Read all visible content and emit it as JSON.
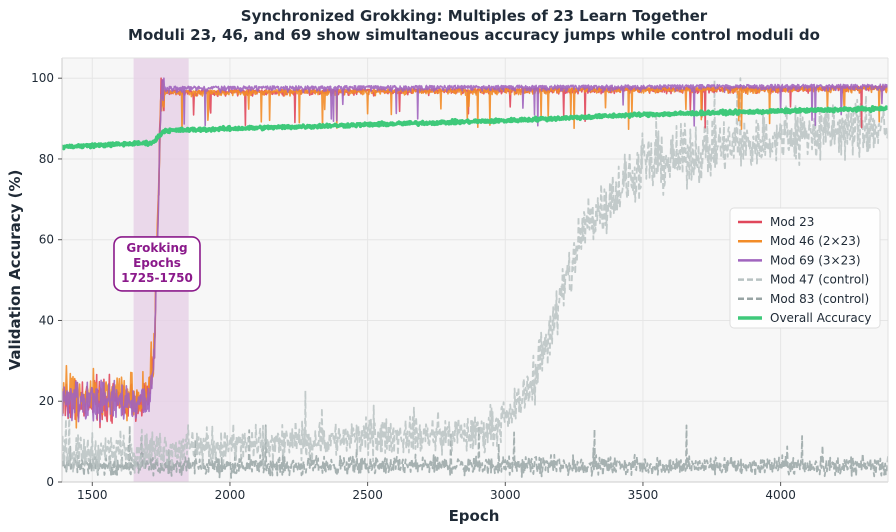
{
  "chart_data": {
    "type": "line",
    "title": "Synchronized Grokking: Multiples of 23 Learn Together",
    "subtitle": "Moduli 23, 46, and 69 show simultaneous accuracy jumps while control moduli do",
    "xlabel": "Epoch",
    "ylabel": "Validation Accuracy (%)",
    "xlim": [
      1390,
      4390
    ],
    "ylim": [
      0,
      105
    ],
    "xticks": [
      1500,
      2000,
      2500,
      3000,
      3500,
      4000
    ],
    "yticks": [
      0,
      20,
      40,
      60,
      80,
      100
    ],
    "grid": true,
    "legend_position": "center-right",
    "shaded_region": {
      "x_start": 1650,
      "x_end": 1850,
      "color": "#e6cde6"
    },
    "annotation": {
      "lines": [
        "Grokking",
        "Epochs",
        "1725-1750"
      ],
      "x": 1735,
      "y": 54,
      "color": "#8b1a8b"
    },
    "series": [
      {
        "name": "Mod 23",
        "color": "#e0475b",
        "style": "solid",
        "points": [
          [
            1390,
            20
          ],
          [
            1700,
            20
          ],
          [
            1725,
            30
          ],
          [
            1750,
            97
          ],
          [
            4390,
            98
          ]
        ],
        "noise": 4.5
      },
      {
        "name": "Mod 46 (2×23)",
        "color": "#f28c28",
        "style": "solid",
        "points": [
          [
            1390,
            21
          ],
          [
            1700,
            21
          ],
          [
            1725,
            32
          ],
          [
            1750,
            97
          ],
          [
            4390,
            98
          ]
        ],
        "noise": 5
      },
      {
        "name": "Mod 69 (3×23)",
        "color": "#a064be",
        "style": "solid",
        "points": [
          [
            1390,
            20
          ],
          [
            1700,
            20
          ],
          [
            1725,
            30
          ],
          [
            1750,
            98
          ],
          [
            4390,
            98.5
          ]
        ],
        "noise": 4.5
      },
      {
        "name": "Mod 47 (control)",
        "color": "#b8c2c2",
        "style": "dashed",
        "points": [
          [
            1390,
            7
          ],
          [
            2000,
            9
          ],
          [
            2500,
            11
          ],
          [
            2900,
            12
          ],
          [
            3000,
            15
          ],
          [
            3100,
            25
          ],
          [
            3200,
            45
          ],
          [
            3300,
            65
          ],
          [
            3500,
            78
          ],
          [
            3800,
            83
          ],
          [
            4100,
            86
          ],
          [
            4390,
            88
          ]
        ],
        "noise": 4
      },
      {
        "name": "Mod 83 (control)",
        "color": "#98a4a4",
        "style": "dashed",
        "points": [
          [
            1390,
            4
          ],
          [
            2500,
            4
          ],
          [
            3000,
            4
          ],
          [
            4390,
            4
          ]
        ],
        "noise": 2
      },
      {
        "name": "Overall Accuracy",
        "color": "#3ec97a",
        "style": "solid-thick",
        "points": [
          [
            1390,
            83
          ],
          [
            1720,
            84
          ],
          [
            1760,
            87
          ],
          [
            2000,
            87.5
          ],
          [
            2500,
            88.5
          ],
          [
            3000,
            89.5
          ],
          [
            3500,
            91
          ],
          [
            4390,
            92.5
          ]
        ],
        "noise": 0.4
      }
    ]
  }
}
